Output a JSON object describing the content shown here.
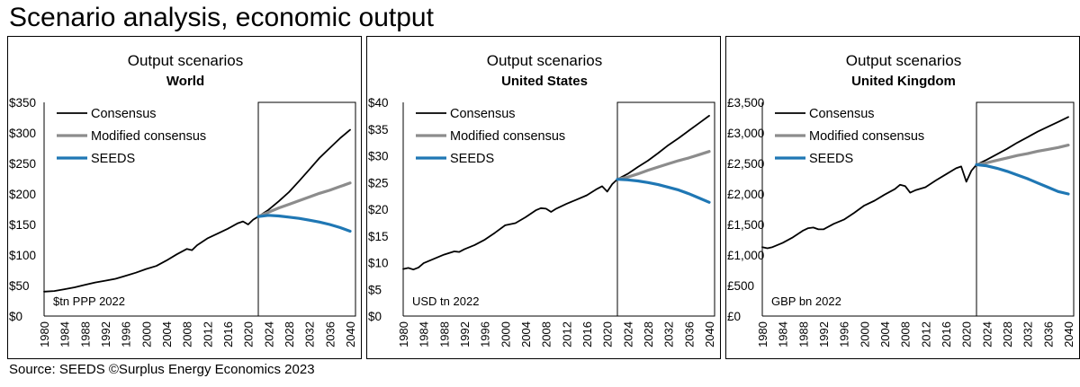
{
  "page": {
    "title": "Scenario analysis, economic output",
    "source": "Source: SEEDS  ©Surplus Energy Economics 2023"
  },
  "colors": {
    "consensus": "#000000",
    "modified": "#8c8c8c",
    "seeds": "#1f77b4"
  },
  "chart_data": [
    {
      "type": "line",
      "title": "Output scenarios",
      "subtitle": "World",
      "unit_note": "$tn PPP 2022",
      "y_prefix": "$",
      "y_suffix": "",
      "ylim": [
        0,
        350
      ],
      "y_ticks": [
        0,
        50,
        100,
        150,
        200,
        250,
        300,
        350
      ],
      "y_tick_labels": [
        "$0",
        "$50",
        "$100",
        "$150",
        "$200",
        "$250",
        "$300",
        "$350"
      ],
      "x_ticks": [
        1980,
        1984,
        1988,
        1992,
        1996,
        2000,
        2004,
        2008,
        2012,
        2016,
        2020,
        2024,
        2028,
        2032,
        2036,
        2040
      ],
      "xlim": [
        1980,
        2040
      ],
      "projection_box": [
        2022,
        2040
      ],
      "legend": [
        "Consensus",
        "Modified consensus",
        "SEEDS"
      ],
      "legend_position": "top-left",
      "series": [
        {
          "name": "Consensus",
          "x": [
            1980,
            1982,
            1984,
            1986,
            1988,
            1990,
            1992,
            1994,
            1996,
            1998,
            2000,
            2002,
            2004,
            2006,
            2008,
            2009,
            2010,
            2012,
            2014,
            2016,
            2018,
            2019,
            2020,
            2021,
            2022,
            2024,
            2026,
            2028,
            2030,
            2032,
            2034,
            2036,
            2038,
            2040
          ],
          "values": [
            40,
            41,
            44,
            47,
            51,
            55,
            58,
            61,
            66,
            71,
            77,
            82,
            91,
            101,
            110,
            108,
            116,
            127,
            135,
            143,
            152,
            155,
            150,
            158,
            163,
            174,
            188,
            203,
            221,
            240,
            259,
            275,
            291,
            305
          ]
        },
        {
          "name": "Modified consensus",
          "x": [
            2022,
            2024,
            2026,
            2028,
            2030,
            2032,
            2034,
            2036,
            2038,
            2040
          ],
          "values": [
            163,
            170,
            177,
            183,
            189,
            195,
            201,
            206,
            212,
            218
          ]
        },
        {
          "name": "SEEDS",
          "x": [
            2022,
            2024,
            2026,
            2028,
            2030,
            2032,
            2034,
            2036,
            2038,
            2040
          ],
          "values": [
            163,
            165,
            164,
            162,
            160,
            157,
            154,
            150,
            145,
            139
          ]
        }
      ]
    },
    {
      "type": "line",
      "title": "Output scenarios",
      "subtitle": "United States",
      "unit_note": "USD tn 2022",
      "y_prefix": "$",
      "y_suffix": "",
      "ylim": [
        0,
        40
      ],
      "y_ticks": [
        0,
        5,
        10,
        15,
        20,
        25,
        30,
        35,
        40
      ],
      "y_tick_labels": [
        "$0",
        "$5",
        "$10",
        "$15",
        "$20",
        "$25",
        "$30",
        "$35",
        "$40"
      ],
      "x_ticks": [
        1980,
        1984,
        1988,
        1992,
        1996,
        2000,
        2004,
        2008,
        2012,
        2016,
        2020,
        2024,
        2028,
        2032,
        2036,
        2040
      ],
      "xlim": [
        1980,
        2040
      ],
      "projection_box": [
        2022,
        2040
      ],
      "legend": [
        "Consensus",
        "Modified consensus",
        "SEEDS"
      ],
      "legend_position": "top-left",
      "series": [
        {
          "name": "Consensus",
          "x": [
            1980,
            1981,
            1982,
            1983,
            1984,
            1986,
            1988,
            1990,
            1991,
            1992,
            1994,
            1996,
            1998,
            2000,
            2002,
            2004,
            2006,
            2007,
            2008,
            2009,
            2010,
            2012,
            2014,
            2016,
            2018,
            2019,
            2020,
            2021,
            2022,
            2024,
            2026,
            2028,
            2030,
            2032,
            2034,
            2036,
            2038,
            2040
          ],
          "values": [
            8.8,
            9.0,
            8.7,
            9.1,
            9.9,
            10.7,
            11.5,
            12.1,
            12.0,
            12.5,
            13.3,
            14.3,
            15.6,
            17.0,
            17.4,
            18.5,
            19.8,
            20.2,
            20.1,
            19.5,
            20.1,
            21.0,
            21.8,
            22.6,
            23.8,
            24.3,
            23.3,
            24.7,
            25.6,
            26.6,
            27.9,
            29.1,
            30.5,
            32.0,
            33.3,
            34.7,
            36.1,
            37.5
          ]
        },
        {
          "name": "Modified consensus",
          "x": [
            2022,
            2024,
            2026,
            2028,
            2030,
            2032,
            2034,
            2036,
            2038,
            2040
          ],
          "values": [
            25.6,
            26.0,
            26.6,
            27.3,
            27.9,
            28.5,
            29.1,
            29.6,
            30.2,
            30.8
          ]
        },
        {
          "name": "SEEDS",
          "x": [
            2022,
            2024,
            2026,
            2028,
            2030,
            2032,
            2034,
            2036,
            2038,
            2040
          ],
          "values": [
            25.6,
            25.5,
            25.3,
            25.0,
            24.6,
            24.1,
            23.6,
            22.9,
            22.1,
            21.3
          ]
        }
      ]
    },
    {
      "type": "line",
      "title": "Output scenarios",
      "subtitle": "United Kingdom",
      "unit_note": "GBP bn 2022",
      "y_prefix": "£",
      "y_suffix": "",
      "ylim": [
        0,
        3500
      ],
      "y_ticks": [
        0,
        500,
        1000,
        1500,
        2000,
        2500,
        3000,
        3500
      ],
      "y_tick_labels": [
        "£0",
        "£500",
        "£1,000",
        "£1,500",
        "£2,000",
        "£2,500",
        "£3,000",
        "£3,500"
      ],
      "x_ticks": [
        1980,
        1984,
        1988,
        1992,
        1996,
        2000,
        2004,
        2008,
        2012,
        2016,
        2020,
        2024,
        2028,
        2032,
        2036,
        2040
      ],
      "xlim": [
        1980,
        2040
      ],
      "projection_box": [
        2022,
        2040
      ],
      "legend": [
        "Consensus",
        "Modified consensus",
        "SEEDS"
      ],
      "legend_position": "top-left",
      "series": [
        {
          "name": "Consensus",
          "x": [
            1980,
            1981,
            1982,
            1984,
            1986,
            1988,
            1989,
            1990,
            1991,
            1992,
            1994,
            1996,
            1998,
            2000,
            2002,
            2004,
            2006,
            2007,
            2008,
            2009,
            2010,
            2012,
            2014,
            2016,
            2018,
            2019,
            2020,
            2021,
            2022,
            2024,
            2026,
            2028,
            2030,
            2032,
            2034,
            2036,
            2038,
            2040
          ],
          "values": [
            1130,
            1110,
            1130,
            1200,
            1290,
            1400,
            1440,
            1450,
            1420,
            1420,
            1510,
            1580,
            1690,
            1810,
            1890,
            1990,
            2080,
            2150,
            2130,
            2020,
            2060,
            2110,
            2220,
            2320,
            2420,
            2450,
            2200,
            2380,
            2480,
            2560,
            2650,
            2740,
            2840,
            2930,
            3020,
            3100,
            3180,
            3260
          ]
        },
        {
          "name": "Modified consensus",
          "x": [
            2022,
            2024,
            2026,
            2028,
            2030,
            2032,
            2034,
            2036,
            2038,
            2040
          ],
          "values": [
            2480,
            2510,
            2550,
            2590,
            2630,
            2660,
            2700,
            2730,
            2760,
            2800
          ]
        },
        {
          "name": "SEEDS",
          "x": [
            2022,
            2024,
            2026,
            2028,
            2030,
            2032,
            2034,
            2036,
            2038,
            2040
          ],
          "values": [
            2480,
            2460,
            2420,
            2370,
            2310,
            2250,
            2180,
            2110,
            2040,
            2000
          ]
        }
      ]
    }
  ]
}
